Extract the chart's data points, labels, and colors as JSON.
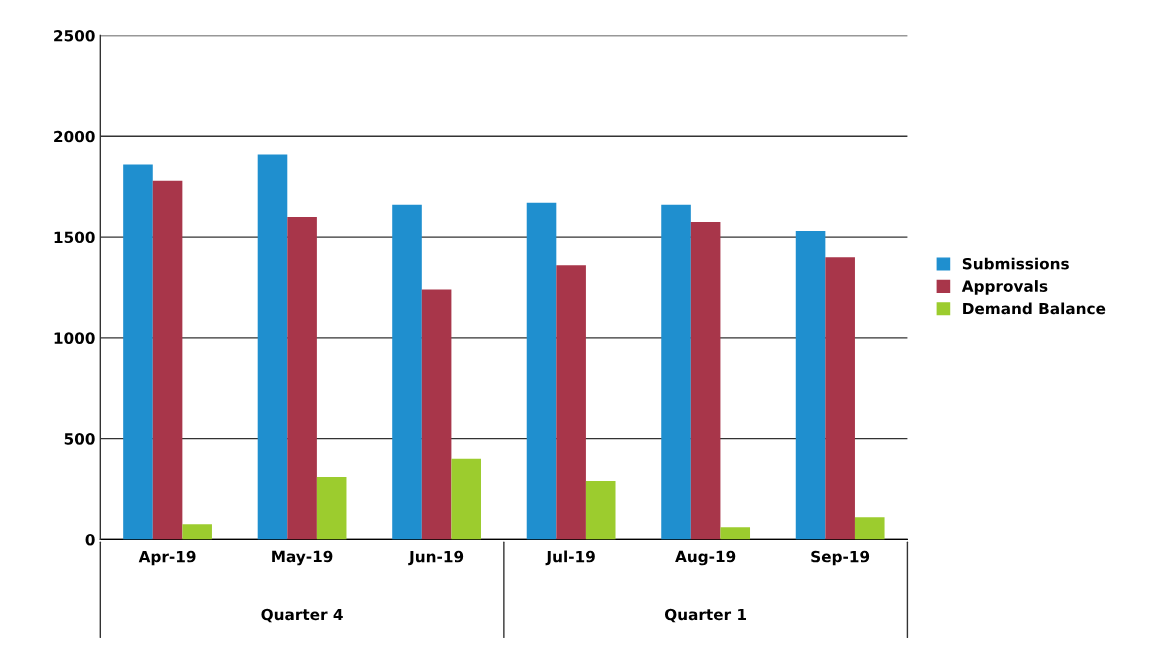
{
  "chart_data": {
    "type": "bar",
    "categories": [
      "Apr-19",
      "May-19",
      "Jun-19",
      "Jul-19",
      "Aug-19",
      "Sep-19"
    ],
    "series": [
      {
        "name": "Submissions",
        "color": "#1f8fcf",
        "values": [
          1860,
          1910,
          1660,
          1670,
          1660,
          1530
        ]
      },
      {
        "name": "Approvals",
        "color": "#a8364a",
        "values": [
          1780,
          1600,
          1240,
          1360,
          1575,
          1400
        ]
      },
      {
        "name": "Demand Balance",
        "color": "#9ccc2e",
        "values": [
          75,
          310,
          400,
          290,
          60,
          110
        ]
      }
    ],
    "ylim": [
      0,
      2500
    ],
    "yticks": [
      0,
      500,
      1000,
      1500,
      2000,
      2500
    ],
    "grid": "y",
    "legend": "right",
    "annotations": [
      "Quarter 4",
      "Quarter 1"
    ]
  }
}
